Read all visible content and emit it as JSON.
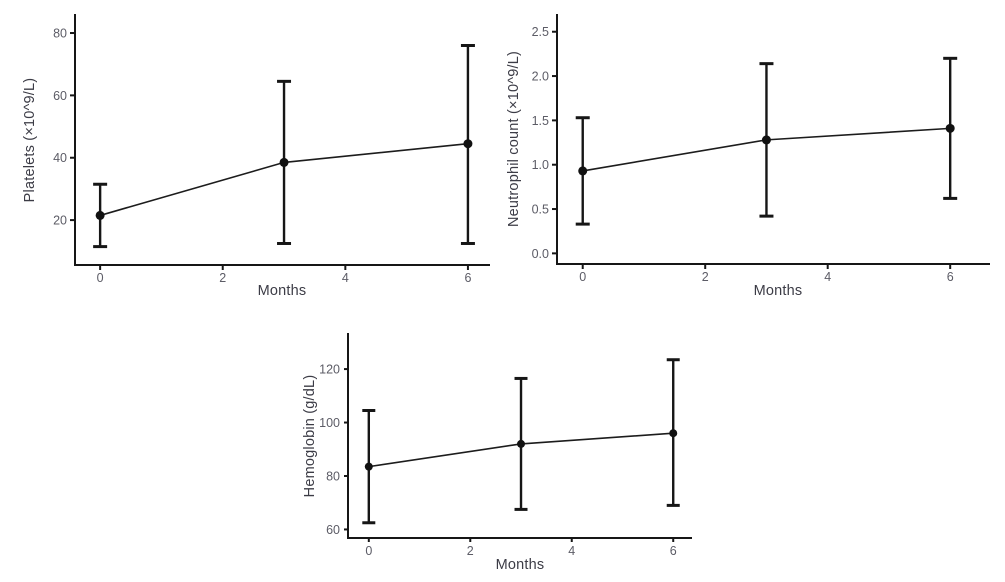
{
  "figure": {
    "background": "#ffffff",
    "description_colors": {
      "axis_line": "#161616",
      "series_line": "#1c1c1c",
      "point_fill": "#111111",
      "error_bar": "#161616",
      "tick_label_text": "#5c5c66",
      "axis_title_text": "#3c3c46"
    }
  },
  "chart_data": [
    {
      "id": "platelets",
      "type": "line",
      "title": "",
      "xlabel": "Months",
      "ylabel": "Platelets (×10^9/L)",
      "x": [
        0,
        3,
        6
      ],
      "y": [
        21.5,
        38.5,
        44.5
      ],
      "y_err_low": [
        11.5,
        12.5,
        12.5
      ],
      "y_err_high": [
        31.5,
        64.5,
        76
      ],
      "x_ticks": [
        0,
        2,
        4,
        6
      ],
      "x_tick_labels": [
        "0",
        "2",
        "4",
        "6"
      ],
      "y_ticks": [
        20,
        40,
        60,
        80
      ],
      "y_tick_labels": [
        "20",
        "40",
        "60",
        "80"
      ],
      "xlim": [
        -0.41,
        6.36
      ],
      "ylim": [
        5.6,
        86.1
      ],
      "grid": false,
      "legend": "none",
      "error_bars": true
    },
    {
      "id": "neutrophil-count",
      "type": "line",
      "title": "",
      "xlabel": "Months",
      "ylabel": "Neutrophil count (×10^9/L)",
      "x": [
        0,
        3,
        6
      ],
      "y": [
        0.93,
        1.28,
        1.41
      ],
      "y_err_low": [
        0.33,
        0.42,
        0.62
      ],
      "y_err_high": [
        1.53,
        2.14,
        2.2
      ],
      "x_ticks": [
        0,
        2,
        4,
        6
      ],
      "x_tick_labels": [
        "0",
        "2",
        "4",
        "6"
      ],
      "y_ticks": [
        0,
        0.5,
        1,
        1.5,
        2,
        2.5
      ],
      "y_tick_labels": [
        "0.0",
        "0.5",
        "1.0",
        "1.5",
        "2.0",
        "2.5"
      ],
      "xlim": [
        -0.42,
        6.65
      ],
      "ylim": [
        -0.12,
        2.7
      ],
      "grid": false,
      "legend": "none",
      "error_bars": true
    },
    {
      "id": "hemoglobin",
      "type": "line",
      "title": "",
      "xlabel": "Months",
      "ylabel": "Hemoglobin (g/dL)",
      "x": [
        0,
        3,
        6
      ],
      "y": [
        83.5,
        92,
        96
      ],
      "y_err_low": [
        62.5,
        67.5,
        69
      ],
      "y_err_high": [
        104.5,
        116.5,
        123.5
      ],
      "x_ticks": [
        0,
        2,
        4,
        6
      ],
      "x_tick_labels": [
        "0",
        "2",
        "4",
        "6"
      ],
      "y_ticks": [
        60,
        80,
        100,
        120
      ],
      "y_tick_labels": [
        "60",
        "80",
        "100",
        "120"
      ],
      "xlim": [
        -0.41,
        6.37
      ],
      "ylim": [
        56.8,
        133.5
      ],
      "grid": false,
      "legend": "none",
      "error_bars": true
    }
  ]
}
